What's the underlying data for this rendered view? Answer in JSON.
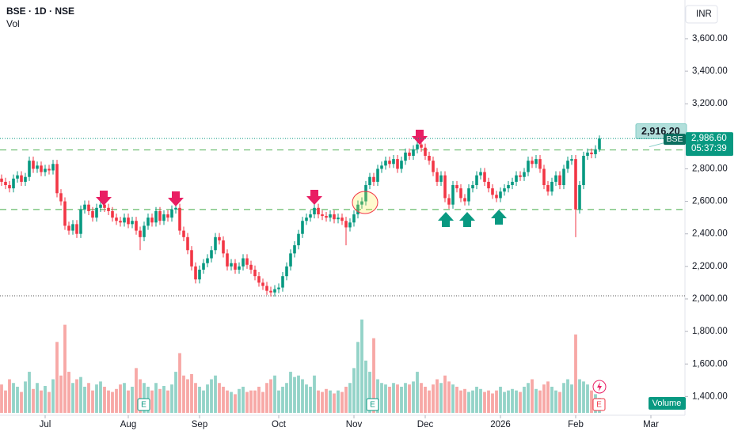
{
  "chart_data": {
    "type": "candlestick",
    "title": "BSE · 1D · NSE",
    "volume_label": "Vol",
    "currency": "INR",
    "volume_title": "Volume",
    "open": [
      2740,
      2720,
      2700,
      2680,
      2740,
      2760,
      2720,
      2750,
      2850,
      2800,
      2820,
      2780,
      2800,
      2790,
      2830,
      2650,
      2600,
      2450,
      2420,
      2460,
      2400,
      2550,
      2580,
      2540,
      2500,
      2560,
      2580,
      2560,
      2540,
      2500,
      2480,
      2470,
      2500,
      2460,
      2480,
      2420,
      2380,
      2450,
      2500,
      2470,
      2540,
      2480,
      2520,
      2500,
      2550,
      2560,
      2420,
      2380,
      2300,
      2200,
      2120,
      2180,
      2220,
      2250,
      2300,
      2380,
      2360,
      2280,
      2200,
      2220,
      2180,
      2200,
      2250,
      2210,
      2180,
      2140,
      2100,
      2080,
      2050,
      2040,
      2060,
      2070,
      2140,
      2200,
      2280,
      2330,
      2400,
      2480,
      2500,
      2520,
      2560,
      2520,
      2510,
      2500,
      2520,
      2490,
      2500,
      2480,
      2440,
      2470,
      2520,
      2580,
      2600,
      2700,
      2750,
      2720,
      2800,
      2820,
      2850,
      2830,
      2860,
      2800,
      2850,
      2900,
      2880,
      2920,
      2950,
      2930,
      2880,
      2850,
      2780,
      2720,
      2760,
      2620,
      2580,
      2700,
      2680,
      2620,
      2600,
      2680,
      2700,
      2760,
      2780,
      2720,
      2680,
      2640,
      2620,
      2660,
      2680,
      2700,
      2720,
      2760,
      2750,
      2780,
      2850,
      2830,
      2860,
      2800,
      2700,
      2660,
      2720,
      2760,
      2700,
      2800,
      2850,
      2860,
      2550,
      2700,
      2880,
      2900,
      2890,
      2920
    ],
    "high": [
      2765,
      2745,
      2725,
      2765,
      2785,
      2785,
      2775,
      2875,
      2875,
      2845,
      2845,
      2825,
      2825,
      2855,
      2855,
      2675,
      2625,
      2475,
      2485,
      2485,
      2575,
      2605,
      2605,
      2565,
      2585,
      2605,
      2605,
      2585,
      2565,
      2525,
      2505,
      2525,
      2525,
      2505,
      2505,
      2445,
      2475,
      2525,
      2525,
      2565,
      2565,
      2545,
      2545,
      2575,
      2585,
      2585,
      2445,
      2405,
      2325,
      2225,
      2205,
      2245,
      2275,
      2325,
      2405,
      2405,
      2385,
      2305,
      2245,
      2245,
      2225,
      2275,
      2275,
      2235,
      2205,
      2165,
      2125,
      2105,
      2075,
      2085,
      2095,
      2165,
      2225,
      2305,
      2355,
      2425,
      2505,
      2525,
      2545,
      2585,
      2585,
      2545,
      2535,
      2545,
      2545,
      2525,
      2525,
      2505,
      2495,
      2545,
      2605,
      2625,
      2725,
      2775,
      2775,
      2825,
      2845,
      2875,
      2875,
      2885,
      2885,
      2875,
      2925,
      2925,
      2945,
      2975,
      2975,
      2955,
      2905,
      2875,
      2805,
      2785,
      2785,
      2645,
      2725,
      2725,
      2705,
      2645,
      2705,
      2725,
      2785,
      2805,
      2805,
      2745,
      2705,
      2665,
      2685,
      2705,
      2725,
      2745,
      2785,
      2785,
      2805,
      2875,
      2875,
      2885,
      2885,
      2825,
      2725,
      2745,
      2785,
      2785,
      2825,
      2875,
      2885,
      2885,
      2725,
      2905,
      2925,
      2925,
      2945,
      3005
    ],
    "low": [
      2695,
      2675,
      2655,
      2655,
      2715,
      2695,
      2695,
      2725,
      2775,
      2775,
      2755,
      2755,
      2765,
      2765,
      2625,
      2575,
      2425,
      2395,
      2395,
      2375,
      2375,
      2525,
      2515,
      2475,
      2475,
      2535,
      2535,
      2515,
      2475,
      2455,
      2445,
      2445,
      2435,
      2435,
      2395,
      2300,
      2355,
      2425,
      2445,
      2445,
      2455,
      2455,
      2475,
      2475,
      2525,
      2395,
      2355,
      2275,
      2175,
      2095,
      2095,
      2155,
      2195,
      2225,
      2275,
      2335,
      2255,
      2175,
      2175,
      2155,
      2155,
      2175,
      2185,
      2155,
      2115,
      2075,
      2055,
      2025,
      2015,
      2015,
      2035,
      2045,
      2115,
      2175,
      2255,
      2305,
      2375,
      2455,
      2475,
      2495,
      2495,
      2485,
      2475,
      2475,
      2465,
      2465,
      2455,
      2330,
      2415,
      2445,
      2495,
      2555,
      2575,
      2675,
      2695,
      2695,
      2775,
      2795,
      2805,
      2805,
      2775,
      2775,
      2825,
      2855,
      2855,
      2895,
      2905,
      2855,
      2825,
      2755,
      2695,
      2695,
      2595,
      2555,
      2555,
      2655,
      2595,
      2575,
      2575,
      2655,
      2675,
      2735,
      2695,
      2655,
      2615,
      2595,
      2595,
      2635,
      2655,
      2675,
      2695,
      2725,
      2725,
      2755,
      2805,
      2805,
      2775,
      2675,
      2635,
      2635,
      2695,
      2675,
      2675,
      2775,
      2825,
      2380,
      2525,
      2675,
      2855,
      2865,
      2865,
      2905
    ],
    "close": [
      2720,
      2700,
      2680,
      2740,
      2760,
      2720,
      2750,
      2850,
      2800,
      2820,
      2780,
      2800,
      2790,
      2830,
      2650,
      2600,
      2450,
      2420,
      2460,
      2400,
      2550,
      2580,
      2540,
      2500,
      2560,
      2580,
      2560,
      2540,
      2500,
      2480,
      2470,
      2500,
      2460,
      2480,
      2420,
      2380,
      2450,
      2500,
      2470,
      2540,
      2480,
      2520,
      2500,
      2550,
      2560,
      2420,
      2380,
      2300,
      2200,
      2120,
      2180,
      2220,
      2250,
      2300,
      2380,
      2360,
      2280,
      2200,
      2220,
      2180,
      2200,
      2250,
      2210,
      2180,
      2140,
      2100,
      2080,
      2050,
      2040,
      2060,
      2070,
      2140,
      2200,
      2280,
      2330,
      2400,
      2480,
      2500,
      2520,
      2560,
      2520,
      2510,
      2500,
      2520,
      2490,
      2500,
      2480,
      2440,
      2470,
      2520,
      2580,
      2600,
      2700,
      2750,
      2720,
      2800,
      2820,
      2850,
      2830,
      2860,
      2800,
      2850,
      2900,
      2880,
      2920,
      2950,
      2930,
      2880,
      2850,
      2780,
      2720,
      2760,
      2620,
      2580,
      2700,
      2680,
      2620,
      2600,
      2680,
      2700,
      2760,
      2780,
      2720,
      2680,
      2640,
      2620,
      2660,
      2680,
      2700,
      2720,
      2760,
      2750,
      2780,
      2850,
      2830,
      2860,
      2800,
      2700,
      2660,
      2720,
      2760,
      2700,
      2800,
      2850,
      2860,
      2550,
      2700,
      2880,
      2900,
      2890,
      2920,
      2986.6
    ],
    "volume": [
      38,
      30,
      45,
      40,
      35,
      28,
      42,
      55,
      32,
      40,
      30,
      36,
      28,
      45,
      95,
      50,
      118,
      55,
      40,
      45,
      48,
      35,
      40,
      30,
      38,
      42,
      35,
      30,
      28,
      32,
      38,
      40,
      30,
      35,
      60,
      45,
      40,
      35,
      30,
      40,
      32,
      36,
      30,
      38,
      55,
      80,
      50,
      45,
      52,
      40,
      35,
      30,
      38,
      45,
      50,
      40,
      35,
      30,
      28,
      25,
      32,
      35,
      28,
      30,
      30,
      35,
      28,
      40,
      45,
      50,
      30,
      35,
      40,
      55,
      48,
      50,
      45,
      38,
      35,
      50,
      30,
      28,
      32,
      30,
      26,
      30,
      28,
      35,
      40,
      60,
      95,
      125,
      70,
      55,
      100,
      45,
      40,
      38,
      35,
      40,
      38,
      35,
      40,
      38,
      42,
      55,
      40,
      35,
      30,
      38,
      45,
      40,
      50,
      42,
      38,
      35,
      30,
      32,
      28,
      30,
      35,
      32,
      28,
      30,
      26,
      30,
      35,
      28,
      30,
      32,
      30,
      28,
      35,
      40,
      45,
      32,
      30,
      38,
      42,
      35,
      30,
      28,
      40,
      45,
      38,
      105,
      45,
      42,
      38,
      30,
      25,
      20
    ],
    "up_color": "#089981",
    "down_color": "#f23645",
    "up_volume_color": "#93d3c8",
    "down_volume_color": "#f7a8a6",
    "xlim": [
      -0.4,
      172.6
    ],
    "xticks": [
      {
        "value": 11,
        "label": "Jul"
      },
      {
        "value": 32,
        "label": "Aug"
      },
      {
        "value": 50,
        "label": "Sep"
      },
      {
        "value": 70,
        "label": "Oct"
      },
      {
        "value": 89,
        "label": "Nov"
      },
      {
        "value": 107,
        "label": "Dec"
      },
      {
        "value": 126,
        "label": "2026"
      },
      {
        "value": 145,
        "label": "Feb"
      },
      {
        "value": 164,
        "label": "Mar"
      }
    ],
    "ylim": [
      1285,
      3838
    ],
    "yticks": [
      {
        "value": 1400,
        "label": "1,400.00"
      },
      {
        "value": 1600,
        "label": "1,600.00"
      },
      {
        "value": 1800,
        "label": "1,800.00"
      },
      {
        "value": 2000,
        "label": "2,000.00"
      },
      {
        "value": 2200,
        "label": "2,200.00"
      },
      {
        "value": 2400,
        "label": "2,400.00"
      },
      {
        "value": 2600,
        "label": "2,600.00"
      },
      {
        "value": 2800,
        "label": "2,800.00"
      },
      {
        "value": 3200,
        "label": "3,200.00"
      },
      {
        "value": 3400,
        "label": "3,400.00"
      },
      {
        "value": 3600,
        "label": "3,600.00"
      }
    ],
    "last_price": {
      "value": 2986.6,
      "label": "2,986.60",
      "symbol": "BSE",
      "countdown": "05:37:39"
    },
    "levels": [
      {
        "value": 2916.2,
        "label": "2,916.20"
      },
      {
        "value": 2550
      }
    ]
  }
}
